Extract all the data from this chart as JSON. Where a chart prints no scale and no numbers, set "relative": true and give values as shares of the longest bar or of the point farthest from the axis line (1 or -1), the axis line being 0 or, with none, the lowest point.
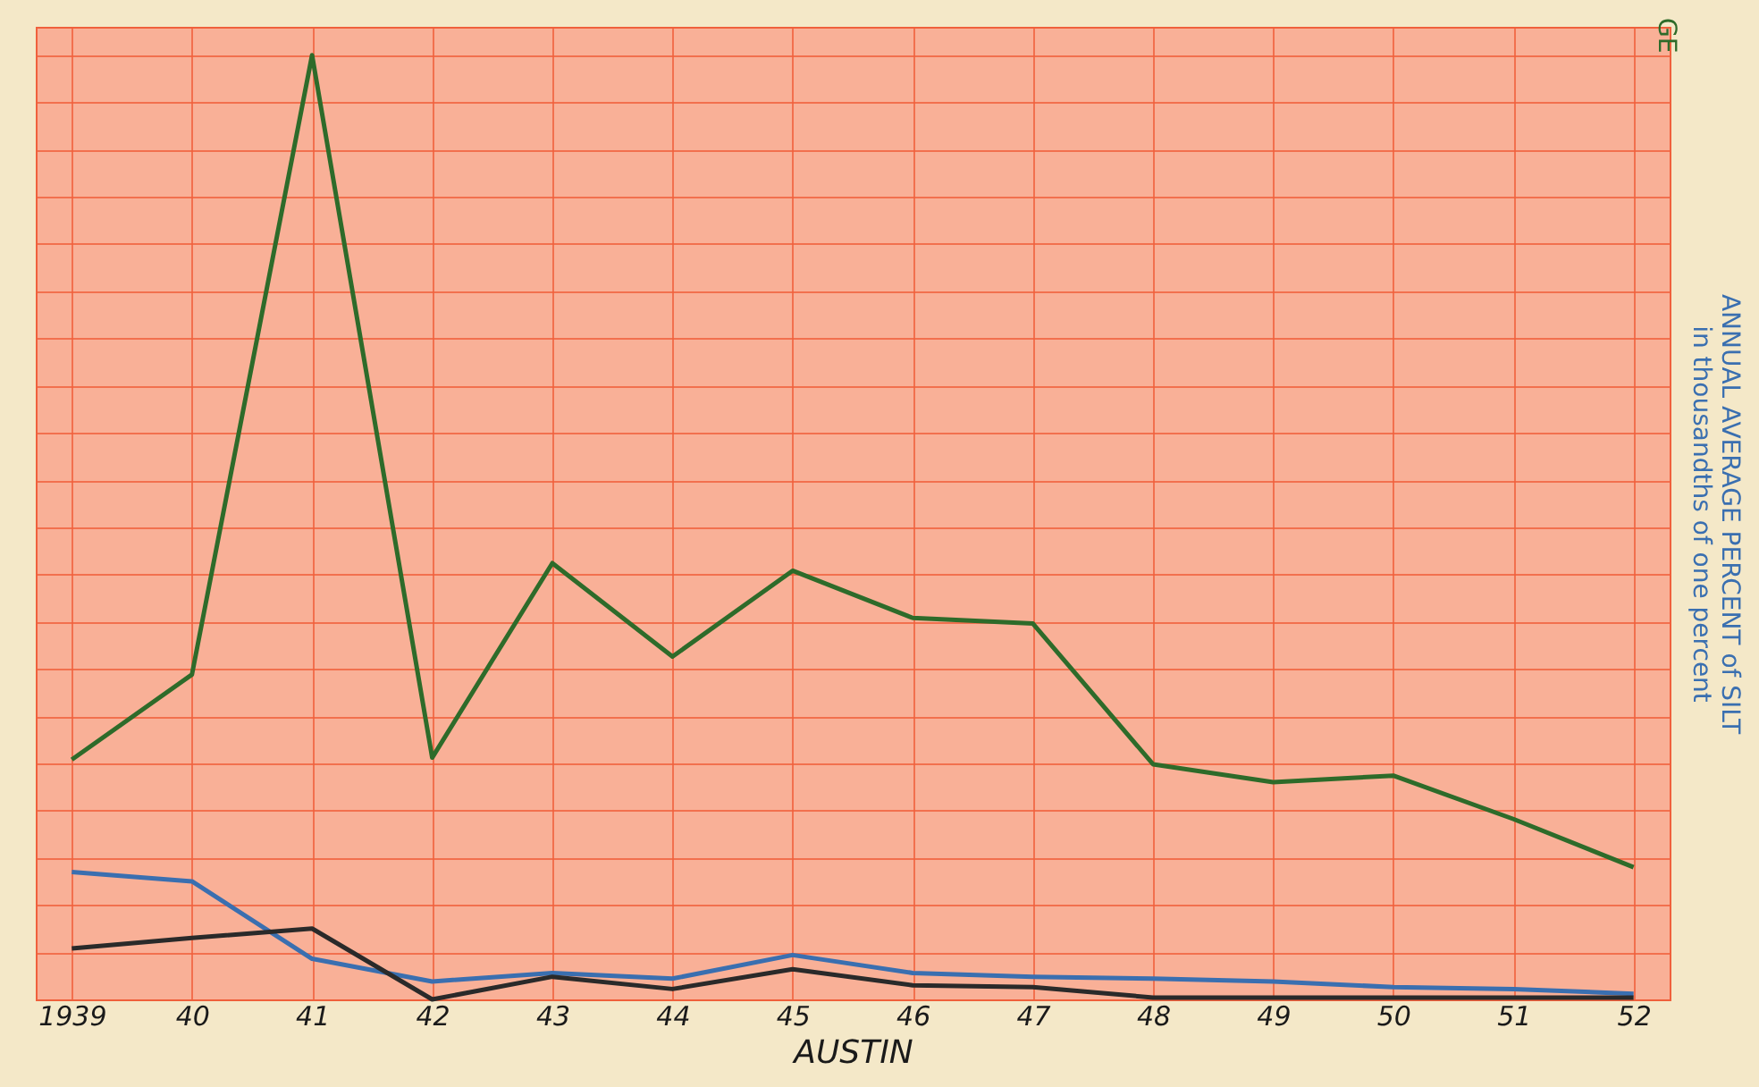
{
  "chart_data": {
    "type": "line",
    "relative": true,
    "xlabel": "AUSTIN",
    "y2label": "ANNUAL AVERAGE PERCENT of SILT\nin thousandths of one percent",
    "annotations": [
      "GE"
    ],
    "categories": [
      "1939",
      "40",
      "41",
      "42",
      "43",
      "44",
      "45",
      "46",
      "47",
      "48",
      "49",
      "50",
      "51",
      "52"
    ],
    "series": [
      {
        "color": "#2e6b2a",
        "values": [
          0.254,
          0.344,
          1.0,
          0.256,
          0.462,
          0.363,
          0.454,
          0.404,
          0.398,
          0.249,
          0.23,
          0.237,
          0.191,
          0.14
        ]
      },
      {
        "color": "#3a6fb0",
        "values": [
          0.135,
          0.125,
          0.043,
          0.019,
          0.028,
          0.022,
          0.047,
          0.028,
          0.024,
          0.022,
          0.019,
          0.013,
          0.011,
          0.006
        ]
      },
      {
        "color": "#2a2a2a",
        "values": [
          0.054,
          0.065,
          0.075,
          0.0,
          0.024,
          0.011,
          0.032,
          0.015,
          0.013,
          0.002,
          0.002,
          0.002,
          0.002,
          0.002
        ]
      }
    ],
    "grid": true,
    "marker": "none",
    "line_style": "solid"
  }
}
